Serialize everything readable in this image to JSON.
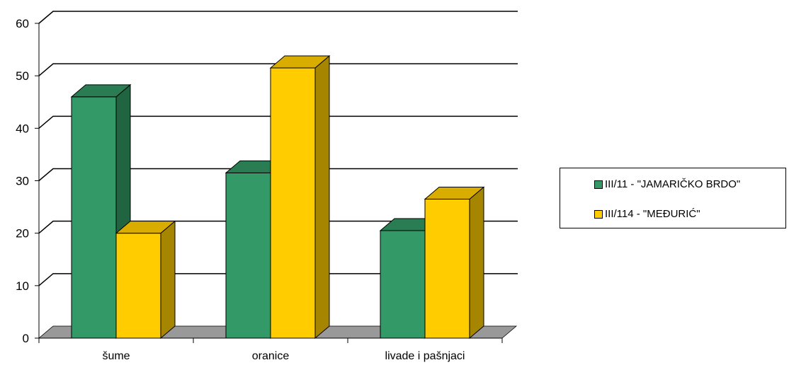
{
  "chart_data": {
    "type": "bar",
    "title": "",
    "xlabel": "",
    "ylabel": "",
    "categories": [
      "šume",
      "oranice",
      "livade i pašnjaci"
    ],
    "series": [
      {
        "name": "III/11 - \"JAMARIČKO BRDO\"",
        "values": [
          46,
          31.5,
          20.5
        ],
        "color": "#339966",
        "side_color": "#216442",
        "top_color": "#2a7d53"
      },
      {
        "name": "III/114 - \"MEĐURIĆ\"",
        "values": [
          20,
          51.5,
          26.5
        ],
        "color": "#ffcc00",
        "side_color": "#a68500",
        "top_color": "#d9ad00"
      }
    ],
    "ylim": [
      0,
      60
    ],
    "yticks": [
      0,
      10,
      20,
      30,
      40,
      50,
      60
    ],
    "grid": true,
    "floor_color": "#999999",
    "legend_position": "right"
  }
}
